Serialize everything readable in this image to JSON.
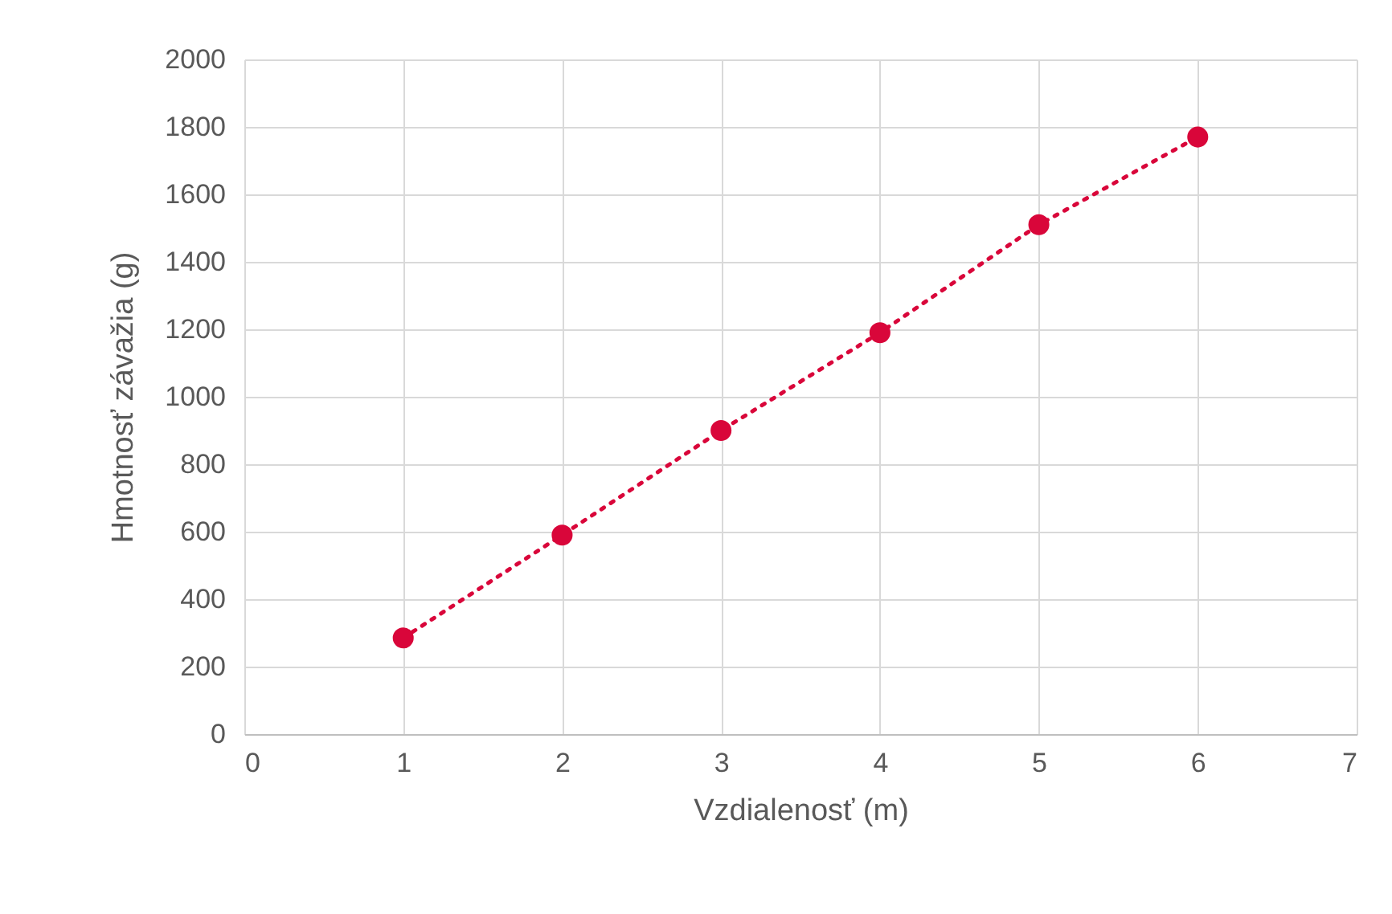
{
  "chart_data": {
    "type": "line",
    "xlabel": "Vzdialenosť (m)",
    "ylabel": "Hmotnosť závažia (g)",
    "x": [
      1,
      2,
      3,
      4,
      5,
      6
    ],
    "series": [
      {
        "color": "#d9063a",
        "values": [
          285,
          590,
          900,
          1190,
          1510,
          1770
        ]
      }
    ],
    "xlim": [
      0,
      7
    ],
    "xticks": [
      0,
      1,
      2,
      3,
      4,
      5,
      6,
      7
    ],
    "ylim": [
      0,
      2000
    ],
    "yticks": [
      0,
      200,
      400,
      600,
      800,
      1000,
      1200,
      1400,
      1600,
      1800,
      2000
    ],
    "grid": true,
    "marker": "circle",
    "line_style": "dotted"
  }
}
